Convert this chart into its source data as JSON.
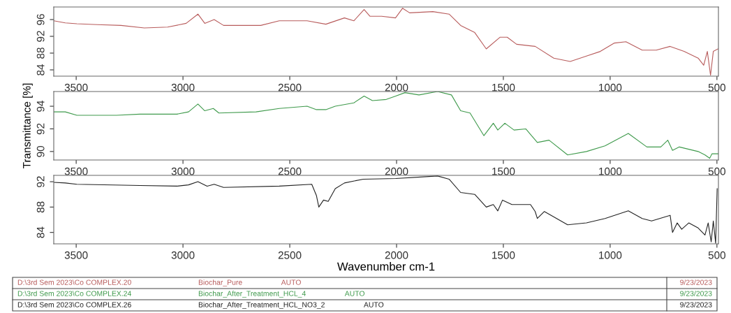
{
  "chart_data": [
    {
      "type": "line",
      "x": [
        3605,
        3551,
        3497,
        3400,
        3290,
        3181,
        3072,
        2985,
        2930,
        2898,
        2854,
        2810,
        2636,
        2549,
        2419,
        2331,
        2244,
        2200,
        2152,
        2125,
        2070,
        2005,
        1972,
        1939,
        1830,
        1754,
        1700,
        1634,
        1580,
        1515,
        1482,
        1438,
        1351,
        1264,
        1187,
        1111,
        1046,
        980,
        926,
        850,
        784,
        719,
        654,
        588,
        562,
        545,
        530,
        517,
        495
      ],
      "series": [
        {
          "color": "#b85c5c",
          "values": [
            95.7,
            95.2,
            95.0,
            94.8,
            94.6,
            94.0,
            94.2,
            95.1,
            97.3,
            95.1,
            96.0,
            94.6,
            94.6,
            95.7,
            95.7,
            94.9,
            96.4,
            95.7,
            98.4,
            96.8,
            96.8,
            96.4,
            98.7,
            97.6,
            97.9,
            97.3,
            94.6,
            92.9,
            89.0,
            91.8,
            91.8,
            90.1,
            89.6,
            86.8,
            86.0,
            87.3,
            88.4,
            90.4,
            90.7,
            88.7,
            88.7,
            89.6,
            88.4,
            86.8,
            85.1,
            88.4,
            82.7,
            88.4,
            89.0
          ]
        }
      ],
      "xlim": [
        3605,
        493
      ],
      "ylim": [
        82.5,
        99
      ],
      "xticks": [
        3500,
        3000,
        2500,
        2000,
        1500,
        1000,
        500
      ],
      "yticks": [
        84,
        88,
        92,
        96
      ],
      "grid": false,
      "legend": false,
      "annotations": [
        "D:\\3rd Sem 2023\\Co COMPLEX.20",
        "Biochar_Pure",
        "AUTO",
        "9/23/2023"
      ]
    },
    {
      "type": "line",
      "x": [
        3605,
        3551,
        3497,
        3311,
        3202,
        3028,
        2974,
        2930,
        2898,
        2858,
        2832,
        2658,
        2549,
        2419,
        2375,
        2331,
        2287,
        2200,
        2152,
        2113,
        2048,
        2004,
        1961,
        1895,
        1808,
        1743,
        1700,
        1656,
        1591,
        1547,
        1526,
        1493,
        1450,
        1395,
        1341,
        1286,
        1199,
        1111,
        1024,
        915,
        828,
        763,
        730,
        708,
        676,
        632,
        588,
        556,
        534,
        523,
        495
      ],
      "series": [
        {
          "color": "#3f9a4c",
          "values": [
            93.5,
            93.5,
            93.2,
            93.2,
            93.3,
            93.3,
            93.5,
            94.2,
            93.6,
            93.8,
            93.4,
            93.5,
            93.8,
            94.0,
            93.7,
            93.7,
            94.0,
            94.3,
            94.9,
            94.5,
            94.6,
            94.9,
            95.2,
            95.0,
            95.3,
            95.0,
            93.6,
            93.4,
            91.4,
            92.5,
            91.9,
            92.5,
            91.9,
            92.0,
            90.8,
            91.0,
            89.7,
            90.0,
            90.5,
            91.6,
            90.4,
            90.4,
            91.0,
            90.1,
            90.4,
            90.2,
            90.0,
            89.7,
            89.4,
            89.8,
            89.8
          ]
        }
      ],
      "xlim": [
        3605,
        493
      ],
      "ylim": [
        89.25,
        95.3
      ],
      "xticks": [
        3500,
        3000,
        2500,
        2000,
        1500,
        1000,
        500
      ],
      "yticks": [
        90,
        92,
        94
      ],
      "ylabel": "Transmittance [%]",
      "grid": false,
      "legend": false,
      "annotations": [
        "D:\\3rd Sem 2023\\Co COMPLEX.24",
        "Biochar_After_Treatment_HCL_4",
        "AUTO",
        "9/23/2023"
      ]
    },
    {
      "type": "line",
      "x": [
        3605,
        3551,
        3497,
        3202,
        3028,
        2974,
        2930,
        2887,
        2854,
        2810,
        2549,
        2397,
        2375,
        2364,
        2342,
        2320,
        2287,
        2244,
        2156,
        2004,
        1808,
        1754,
        1700,
        1634,
        1580,
        1547,
        1526,
        1504,
        1460,
        1373,
        1351,
        1341,
        1308,
        1199,
        1111,
        1024,
        915,
        850,
        806,
        719,
        708,
        686,
        665,
        632,
        588,
        556,
        541,
        527,
        517,
        506,
        499
      ],
      "series": [
        {
          "color": "#222222",
          "values": [
            91.9,
            91.8,
            91.6,
            91.4,
            91.3,
            91.5,
            92.0,
            91.3,
            91.6,
            91.1,
            91.3,
            91.6,
            89.8,
            88.0,
            89.1,
            88.9,
            90.9,
            91.8,
            92.4,
            92.5,
            92.9,
            92.4,
            90.3,
            90.0,
            88.0,
            88.4,
            87.4,
            89.1,
            88.4,
            88.4,
            87.3,
            86.2,
            87.3,
            85.2,
            85.5,
            86.2,
            87.4,
            86.2,
            85.8,
            86.7,
            84.0,
            85.5,
            84.5,
            85.5,
            84.7,
            83.6,
            85.5,
            82.5,
            85.8,
            82.3,
            90.9
          ]
        }
      ],
      "xlim": [
        3605,
        493
      ],
      "ylim": [
        82.2,
        93
      ],
      "xticks": [
        3500,
        3000,
        2500,
        2000,
        1500,
        1000,
        500
      ],
      "yticks": [
        84,
        88,
        92
      ],
      "xlabel": "Wavenumber cm-1",
      "grid": false,
      "legend": false,
      "annotations": [
        "D:\\3rd Sem 2023\\Co COMPLEX.26",
        "Biochar_After_Treatment_HCL_NO3_2",
        "AUTO",
        "9/23/2023"
      ]
    }
  ]
}
